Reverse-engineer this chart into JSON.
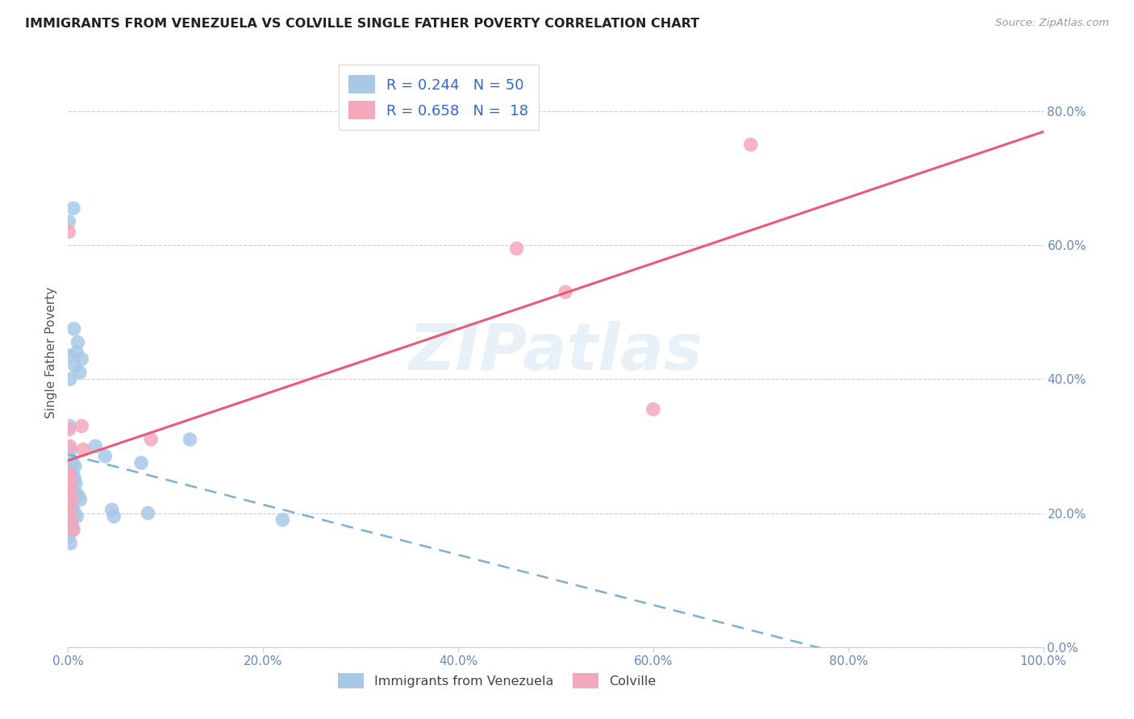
{
  "title": "IMMIGRANTS FROM VENEZUELA VS COLVILLE SINGLE FATHER POVERTY CORRELATION CHART",
  "source": "Source: ZipAtlas.com",
  "ylabel": "Single Father Poverty",
  "watermark": "ZIPatlas",
  "legend_label1": "Immigrants from Venezuela",
  "legend_label2": "Colville",
  "r1": 0.244,
  "n1": 50,
  "r2": 0.658,
  "n2": 18,
  "blue_color": "#a8c8e8",
  "pink_color": "#f4a8bc",
  "blue_line_color": "#7ab0d8",
  "pink_line_color": "#e85a78",
  "blue_scatter": [
    [
      0.0008,
      0.635
    ],
    [
      0.0055,
      0.655
    ],
    [
      0.001,
      0.435
    ],
    [
      0.002,
      0.4
    ],
    [
      0.006,
      0.475
    ],
    [
      0.009,
      0.44
    ],
    [
      0.007,
      0.42
    ],
    [
      0.01,
      0.455
    ],
    [
      0.014,
      0.43
    ],
    [
      0.012,
      0.41
    ],
    [
      0.0015,
      0.33
    ],
    [
      0.0025,
      0.295
    ],
    [
      0.003,
      0.28
    ],
    [
      0.005,
      0.275
    ],
    [
      0.007,
      0.27
    ],
    [
      0.002,
      0.27
    ],
    [
      0.001,
      0.265
    ],
    [
      0.003,
      0.255
    ],
    [
      0.004,
      0.255
    ],
    [
      0.006,
      0.255
    ],
    [
      0.006,
      0.25
    ],
    [
      0.008,
      0.245
    ],
    [
      0.001,
      0.245
    ],
    [
      0.002,
      0.24
    ],
    [
      0.005,
      0.235
    ],
    [
      0.008,
      0.23
    ],
    [
      0.0035,
      0.225
    ],
    [
      0.011,
      0.225
    ],
    [
      0.0125,
      0.22
    ],
    [
      0.001,
      0.22
    ],
    [
      0.002,
      0.215
    ],
    [
      0.004,
      0.21
    ],
    [
      0.005,
      0.205
    ],
    [
      0.007,
      0.2
    ],
    [
      0.009,
      0.195
    ],
    [
      0.001,
      0.195
    ],
    [
      0.0025,
      0.185
    ],
    [
      0.0045,
      0.18
    ],
    [
      0.0015,
      0.175
    ],
    [
      0.0055,
      0.175
    ],
    [
      0.0008,
      0.165
    ],
    [
      0.0025,
      0.155
    ],
    [
      0.028,
      0.3
    ],
    [
      0.038,
      0.285
    ],
    [
      0.045,
      0.205
    ],
    [
      0.047,
      0.195
    ],
    [
      0.075,
      0.275
    ],
    [
      0.082,
      0.2
    ],
    [
      0.125,
      0.31
    ],
    [
      0.22,
      0.19
    ]
  ],
  "pink_scatter": [
    [
      0.0008,
      0.62
    ],
    [
      0.0012,
      0.325
    ],
    [
      0.0018,
      0.3
    ],
    [
      0.014,
      0.33
    ],
    [
      0.0155,
      0.295
    ],
    [
      0.0008,
      0.26
    ],
    [
      0.0015,
      0.255
    ],
    [
      0.0018,
      0.245
    ],
    [
      0.0028,
      0.235
    ],
    [
      0.0035,
      0.22
    ],
    [
      0.0025,
      0.205
    ],
    [
      0.0035,
      0.19
    ],
    [
      0.005,
      0.175
    ],
    [
      0.085,
      0.31
    ],
    [
      0.46,
      0.595
    ],
    [
      0.51,
      0.53
    ],
    [
      0.6,
      0.355
    ],
    [
      0.7,
      0.75
    ]
  ],
  "xlim": [
    0.0,
    1.0
  ],
  "ylim": [
    0.0,
    0.88
  ],
  "ytick_vals": [
    0.0,
    0.2,
    0.4,
    0.6,
    0.8
  ],
  "ytick_labels": [
    "0.0%",
    "20.0%",
    "40.0%",
    "60.0%",
    "80.0%"
  ],
  "xtick_vals": [
    0.0,
    0.2,
    0.4,
    0.6,
    0.8,
    1.0
  ],
  "xtick_labels": [
    "0.0%",
    "20.0%",
    "40.0%",
    "60.0%",
    "80.0%",
    "100.0%"
  ]
}
